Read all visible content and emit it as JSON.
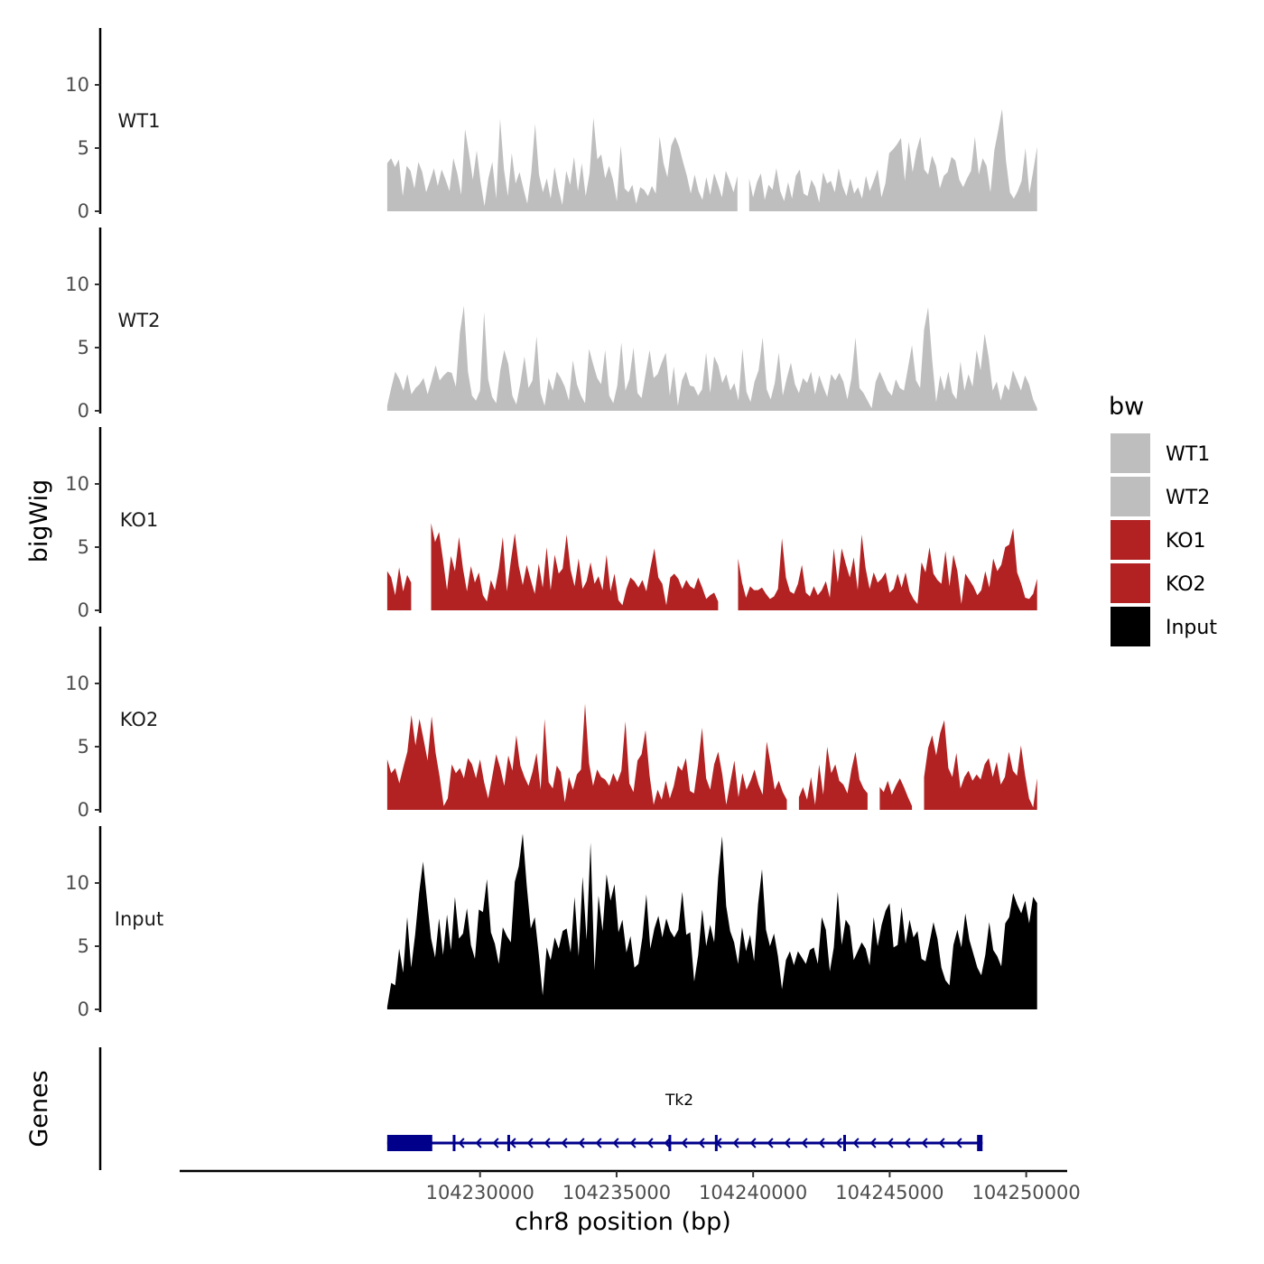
{
  "chart_data": {
    "type": "area",
    "title": "",
    "ylabel": "bigWig",
    "genes_label": "Genes",
    "xlabel": "chr8 position (bp)",
    "xlim": [
      104219000,
      104251500
    ],
    "x_ticks": [
      104230000,
      104235000,
      104240000,
      104245000,
      104250000
    ],
    "x_tick_labels": [
      "104230000",
      "104235000",
      "104240000",
      "104245000",
      "104250000"
    ],
    "y_range": [
      0,
      14.5
    ],
    "y_ticks": [
      0,
      5,
      10
    ],
    "y_tick_labels": [
      "0",
      "5",
      "10"
    ],
    "data_range": [
      104226600,
      104250400
    ],
    "legend": {
      "title": "bw",
      "entries": [
        {
          "label": "WT1",
          "color": "#BEBEBE"
        },
        {
          "label": "WT2",
          "color": "#BEBEBE"
        },
        {
          "label": "KO1",
          "color": "#B22222"
        },
        {
          "label": "KO2",
          "color": "#B22222"
        },
        {
          "label": "Input",
          "color": "#000000"
        }
      ]
    },
    "series": [
      {
        "name": "WT1",
        "color": "#BEBEBE",
        "values": [
          3.8,
          4.2,
          3.5,
          4.1,
          1.2,
          3.6,
          3.2,
          1.8,
          3.9,
          3.1,
          1.5,
          2.4,
          3.4,
          2.0,
          3.3,
          2.5,
          1.6,
          4.2,
          3.0,
          1.3,
          6.5,
          4.6,
          2.5,
          4.8,
          2.3,
          0.4,
          2.6,
          3.9,
          1.0,
          7.3,
          3.3,
          1.2,
          4.6,
          2.2,
          3.1,
          1.8,
          0.6,
          3.0,
          6.9,
          2.9,
          1.5,
          2.6,
          1.0,
          3.5,
          1.8,
          0.5,
          3.2,
          2.1,
          4.3,
          1.6,
          3.8,
          1.2,
          3.0,
          7.4,
          4.1,
          4.5,
          2.6,
          3.6,
          2.5,
          0.8,
          5.2,
          1.8,
          1.5,
          2.1,
          0.6,
          1.9,
          1.7,
          1.2,
          2.0,
          1.4,
          5.9,
          3.8,
          2.7,
          5.2,
          5.9,
          5.1,
          3.9,
          2.8,
          1.4,
          2.9,
          1.6,
          0.9,
          2.7,
          1.3,
          3.0,
          2.1,
          1.1,
          3.2,
          2.4,
          1.5,
          2.8,
          -1,
          -1,
          2.6,
          1.1,
          2.3,
          3.0,
          0.9,
          2.1,
          1.7,
          3.4,
          1.6,
          0.8,
          2.3,
          1.0,
          2.8,
          3.3,
          1.4,
          1.2,
          2.5,
          1.9,
          0.7,
          3.1,
          2.2,
          2.4,
          1.5,
          3.4,
          2.0,
          1.2,
          2.6,
          1.4,
          1.9,
          1.0,
          2.8,
          1.6,
          2.4,
          3.3,
          1.1,
          2.2,
          4.6,
          4.9,
          5.3,
          5.8,
          2.4,
          5.5,
          3.1,
          4.8,
          5.9,
          3.3,
          2.9,
          4.4,
          3.6,
          1.8,
          2.8,
          3.1,
          4.3,
          4.0,
          2.5,
          1.9,
          2.6,
          3.2,
          5.9,
          2.9,
          4.2,
          3.6,
          1.5,
          4.8,
          6.4,
          8.1,
          4.0,
          1.5,
          1.0,
          1.6,
          2.4,
          5.0,
          1.4,
          3.2,
          5.1
        ]
      },
      {
        "name": "WT2",
        "color": "#BEBEBE",
        "values": [
          0.4,
          1.8,
          3.1,
          2.5,
          1.6,
          2.9,
          1.3,
          1.8,
          2.1,
          2.6,
          1.3,
          2.4,
          3.6,
          2.4,
          2.8,
          3.1,
          3.0,
          1.9,
          6.2,
          8.3,
          3.1,
          1.2,
          0.8,
          1.6,
          7.8,
          2.5,
          1.1,
          0.6,
          3.2,
          4.8,
          3.7,
          1.2,
          0.5,
          2.2,
          4.3,
          1.8,
          2.4,
          5.9,
          1.4,
          0.4,
          2.6,
          1.6,
          3.1,
          2.6,
          1.9,
          0.8,
          4.0,
          2.1,
          1.2,
          0.6,
          4.9,
          3.7,
          2.6,
          2.1,
          4.8,
          1.2,
          0.6,
          2.0,
          5.4,
          1.6,
          2.5,
          5.0,
          1.4,
          1.0,
          2.9,
          4.8,
          2.6,
          2.9,
          3.8,
          4.6,
          1.2,
          3.5,
          0.4,
          2.4,
          3.1,
          2.0,
          1.9,
          1.2,
          1.7,
          4.6,
          1.4,
          4.3,
          3.6,
          2.2,
          2.9,
          1.6,
          2.2,
          0.8,
          4.9,
          1.5,
          0.7,
          2.3,
          3.2,
          5.8,
          1.7,
          0.9,
          2.2,
          4.6,
          1.2,
          2.6,
          3.8,
          2.1,
          1.4,
          2.6,
          2.2,
          3.1,
          1.3,
          2.8,
          1.9,
          1.1,
          2.9,
          2.4,
          3.0,
          2.3,
          0.9,
          2.6,
          5.8,
          1.8,
          1.4,
          0.8,
          0.2,
          2.3,
          3.1,
          2.4,
          1.6,
          1.2,
          2.5,
          1.8,
          1.6,
          3.4,
          5.2,
          2.4,
          1.8,
          6.4,
          8.2,
          4.0,
          0.7,
          2.8,
          1.6,
          3.1,
          1.4,
          0.9,
          3.9,
          1.6,
          2.9,
          1.9,
          4.8,
          3.2,
          6.1,
          4.2,
          1.6,
          2.3,
          0.8,
          2.1,
          1.6,
          3.2,
          2.4,
          1.6,
          2.8,
          2.1,
          0.9,
          0.2
        ]
      },
      {
        "name": "KO1",
        "color": "#B22222",
        "values": [
          3.1,
          2.6,
          1.2,
          3.4,
          1.5,
          2.8,
          2.2,
          -1,
          -1,
          -1,
          -1,
          6.9,
          5.4,
          6.2,
          4.0,
          1.6,
          4.3,
          3.1,
          5.8,
          3.3,
          1.5,
          3.5,
          2.2,
          3.0,
          1.2,
          0.7,
          2.4,
          1.6,
          3.3,
          5.8,
          1.5,
          3.9,
          6.1,
          3.5,
          2.0,
          3.6,
          2.4,
          1.3,
          3.7,
          1.8,
          5.0,
          1.6,
          4.4,
          2.9,
          3.3,
          6.0,
          3.2,
          1.9,
          4.1,
          1.7,
          2.3,
          3.8,
          2.1,
          2.7,
          1.6,
          4.4,
          1.5,
          2.9,
          0.8,
          0.4,
          1.7,
          2.6,
          2.3,
          1.8,
          2.4,
          1.5,
          3.3,
          4.9,
          2.6,
          2.1,
          0.4,
          2.6,
          2.9,
          2.5,
          1.7,
          2.4,
          1.9,
          1.7,
          2.6,
          1.8,
          0.9,
          1.2,
          1.4,
          0.7,
          -1,
          -1,
          -1,
          -1,
          4.1,
          2.2,
          1.0,
          1.9,
          1.6,
          1.6,
          1.8,
          1.3,
          0.9,
          1.1,
          1.7,
          5.7,
          2.6,
          1.5,
          1.3,
          2.1,
          3.6,
          1.4,
          1.1,
          1.9,
          1.2,
          1.6,
          2.3,
          1.0,
          4.9,
          2.2,
          4.9,
          3.7,
          2.6,
          4.2,
          1.6,
          6.0,
          3.3,
          1.7,
          3.0,
          2.2,
          2.5,
          3.0,
          1.4,
          1.7,
          2.9,
          1.8,
          3.0,
          1.5,
          0.9,
          0.5,
          3.8,
          3.0,
          5.0,
          2.9,
          2.4,
          2.1,
          4.7,
          1.9,
          4.4,
          3.1,
          0.5,
          2.9,
          2.4,
          1.9,
          1.2,
          1.6,
          3.1,
          1.8,
          4.1,
          3.1,
          3.6,
          5.0,
          5.2,
          6.5,
          3.0,
          2.1,
          1.0,
          0.9,
          1.3,
          2.5
        ]
      },
      {
        "name": "KO2",
        "color": "#B22222",
        "values": [
          4.0,
          2.9,
          3.3,
          2.1,
          3.4,
          4.6,
          7.5,
          5.1,
          7.2,
          5.6,
          3.9,
          7.4,
          4.5,
          2.6,
          0.3,
          0.9,
          3.6,
          2.9,
          3.3,
          2.5,
          4.1,
          3.6,
          2.5,
          4.0,
          2.2,
          0.9,
          2.6,
          4.4,
          3.3,
          1.9,
          4.3,
          3.1,
          5.9,
          3.5,
          2.6,
          1.9,
          3.0,
          4.5,
          1.6,
          7.2,
          2.2,
          1.7,
          3.5,
          3.0,
          0.6,
          2.6,
          1.6,
          2.8,
          3.2,
          8.4,
          3.7,
          1.9,
          3.2,
          2.6,
          2.4,
          1.9,
          2.9,
          2.2,
          3.1,
          7.0,
          2.1,
          1.4,
          3.9,
          4.4,
          6.3,
          2.7,
          0.4,
          1.6,
          0.8,
          2.3,
          0.9,
          1.9,
          3.5,
          3.1,
          4.1,
          1.5,
          1.3,
          3.6,
          6.5,
          2.5,
          1.6,
          3.6,
          4.6,
          2.8,
          0.4,
          2.2,
          3.9,
          1.0,
          2.9,
          1.6,
          2.3,
          3.2,
          2.0,
          1.2,
          5.4,
          3.6,
          1.6,
          2.3,
          1.4,
          0.8,
          -1,
          -1,
          1.0,
          1.8,
          0.8,
          2.6,
          0.4,
          3.6,
          1.2,
          5.0,
          2.9,
          3.6,
          2.3,
          2.0,
          1.3,
          3.2,
          4.6,
          2.4,
          1.7,
          1.3,
          -1,
          -1,
          1.8,
          1.4,
          2.3,
          1.2,
          1.9,
          2.5,
          1.8,
          1.0,
          0.3,
          -1,
          -1,
          2.6,
          4.9,
          5.9,
          4.3,
          6.1,
          7.1,
          3.3,
          2.6,
          4.5,
          1.7,
          2.6,
          3.1,
          2.3,
          2.8,
          2.4,
          3.6,
          4.1,
          2.6,
          3.8,
          2.0,
          2.6,
          4.6,
          3.1,
          2.7,
          5.1,
          2.8,
          0.9,
          0.2,
          2.5
        ]
      },
      {
        "name": "Input",
        "color": "#000000",
        "values": [
          0.2,
          2.1,
          1.9,
          4.8,
          2.9,
          7.3,
          3.3,
          5.9,
          9.2,
          11.7,
          8.6,
          5.6,
          4.1,
          7.2,
          4.3,
          7.5,
          4.7,
          8.9,
          5.6,
          6.0,
          8.0,
          5.1,
          4.0,
          7.9,
          7.7,
          10.3,
          6.1,
          5.2,
          3.6,
          6.5,
          5.8,
          5.3,
          10.1,
          11.3,
          13.9,
          9.8,
          6.4,
          7.3,
          4.4,
          1.1,
          4.9,
          3.9,
          5.7,
          4.8,
          6.2,
          6.4,
          4.5,
          8.9,
          4.2,
          10.5,
          5.5,
          13.2,
          3.1,
          9.0,
          6.2,
          10.7,
          8.6,
          9.9,
          6.1,
          7.1,
          4.5,
          5.8,
          3.3,
          3.6,
          5.7,
          9.1,
          4.8,
          6.4,
          7.4,
          5.7,
          7.2,
          6.2,
          5.7,
          6.3,
          9.3,
          5.9,
          6.1,
          2.2,
          4.3,
          7.9,
          5.0,
          6.7,
          5.3,
          10.4,
          13.7,
          8.2,
          6.2,
          5.3,
          3.6,
          6.5,
          4.6,
          5.9,
          3.8,
          8.3,
          11.1,
          6.3,
          5.0,
          6.0,
          4.2,
          1.6,
          3.9,
          4.6,
          3.5,
          4.6,
          4.1,
          3.6,
          4.7,
          4.9,
          3.6,
          7.3,
          6.3,
          3.0,
          4.9,
          9.3,
          5.1,
          7.1,
          6.6,
          3.9,
          4.6,
          5.3,
          4.8,
          3.5,
          7.3,
          5.0,
          6.7,
          7.8,
          8.4,
          4.9,
          5.1,
          8.1,
          5.2,
          7.1,
          5.7,
          6.2,
          4.0,
          3.8,
          5.3,
          6.9,
          5.6,
          3.3,
          2.3,
          1.9,
          5.1,
          6.3,
          4.9,
          7.6,
          5.5,
          4.4,
          3.3,
          2.7,
          4.3,
          6.9,
          4.7,
          4.2,
          3.4,
          6.8,
          7.3,
          9.2,
          8.3,
          7.6,
          8.6,
          6.8,
          8.9,
          8.4
        ]
      }
    ],
    "genes": [
      {
        "name": "Tk2",
        "start": 104226600,
        "end": 104248400,
        "strand": "-",
        "exons": [
          [
            104226600,
            104228250
          ],
          [
            104229000,
            104229070
          ],
          [
            104231000,
            104231090
          ],
          [
            104236900,
            104236970
          ],
          [
            104238600,
            104238680
          ],
          [
            104243300,
            104243390
          ],
          [
            104248200,
            104248400
          ]
        ]
      }
    ]
  }
}
